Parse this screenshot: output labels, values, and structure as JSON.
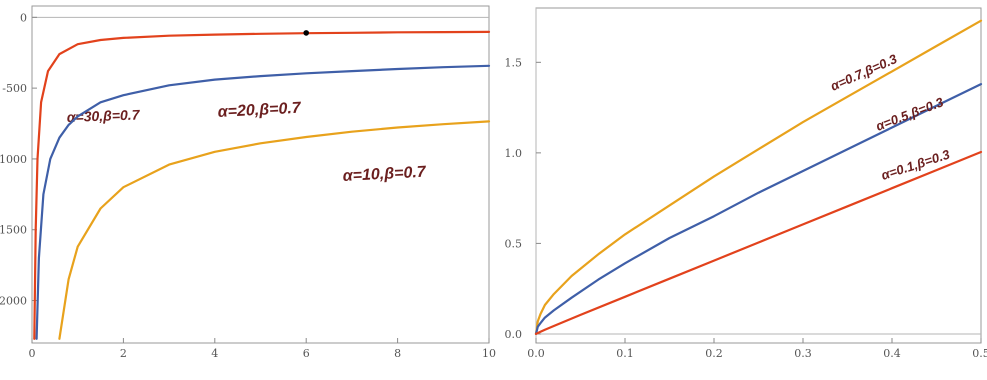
{
  "chart_data": [
    {
      "type": "line",
      "xlim": [
        0,
        10
      ],
      "ylim": [
        -2300,
        80
      ],
      "x_ticks": [
        0,
        2,
        4,
        6,
        8,
        10
      ],
      "x_tick_labels": [
        "0",
        "2",
        "4",
        "6",
        "8",
        "10"
      ],
      "y_ticks": [
        0,
        -500,
        -1000,
        -1500,
        -2000
      ],
      "y_tick_labels": [
        "0",
        "-500",
        "-1000",
        "-1500",
        "-2000"
      ],
      "grid": false,
      "marker": {
        "x": 6.0,
        "y": -110,
        "color": "#000000"
      },
      "series": [
        {
          "label": "α=30,β=0.7",
          "color": "#e2421c",
          "x": [
            0.05,
            0.08,
            0.12,
            0.2,
            0.35,
            0.6,
            1,
            1.5,
            2,
            3,
            4,
            5,
            6,
            7,
            8,
            9,
            10
          ],
          "y": [
            -2270,
            -1500,
            -1000,
            -600,
            -380,
            -260,
            -190,
            -160,
            -145,
            -130,
            -122,
            -116,
            -112,
            -109,
            -106,
            -104,
            -103
          ]
        },
        {
          "label": "α=20,β=0.7",
          "color": "#3f5fa8",
          "x": [
            0.1,
            0.15,
            0.25,
            0.4,
            0.6,
            0.8,
            1,
            1.5,
            2,
            3,
            4,
            5,
            6,
            7,
            8,
            9,
            10
          ],
          "y": [
            -2270,
            -1700,
            -1250,
            -1000,
            -850,
            -760,
            -700,
            -600,
            -550,
            -480,
            -440,
            -415,
            -395,
            -380,
            -365,
            -352,
            -342
          ]
        },
        {
          "label": "α=10,β=0.7",
          "color": "#e8a21c",
          "x": [
            0.6,
            0.8,
            1,
            1.5,
            2,
            3,
            4,
            5,
            6,
            7,
            8,
            9,
            10
          ],
          "y": [
            -2270,
            -1850,
            -1620,
            -1350,
            -1200,
            -1040,
            -950,
            -890,
            -845,
            -808,
            -778,
            -755,
            -735
          ]
        }
      ]
    },
    {
      "type": "line",
      "xlim": [
        0,
        0.5
      ],
      "ylim": [
        -0.05,
        1.8
      ],
      "x_ticks": [
        0,
        0.1,
        0.2,
        0.3,
        0.4,
        0.5
      ],
      "x_tick_labels": [
        "0.0",
        "0.1",
        "0.2",
        "0.3",
        "0.4",
        "0.5"
      ],
      "y_ticks": [
        0,
        0.5,
        1.0,
        1.5
      ],
      "y_tick_labels": [
        "0.0",
        "0.5",
        "1.0",
        "1.5"
      ],
      "grid": false,
      "series": [
        {
          "label": "α=0.7,β=0.3",
          "color": "#e8a21c",
          "x": [
            0,
            0.002,
            0.005,
            0.01,
            0.02,
            0.04,
            0.07,
            0.1,
            0.15,
            0.2,
            0.25,
            0.3,
            0.35,
            0.4,
            0.45,
            0.5
          ],
          "y": [
            0,
            0.07,
            0.11,
            0.16,
            0.22,
            0.32,
            0.44,
            0.55,
            0.71,
            0.87,
            1.02,
            1.17,
            1.31,
            1.45,
            1.59,
            1.73
          ]
        },
        {
          "label": "α=0.5,β=0.3",
          "color": "#3f5fa8",
          "x": [
            0,
            0.002,
            0.005,
            0.01,
            0.02,
            0.04,
            0.07,
            0.1,
            0.15,
            0.2,
            0.25,
            0.3,
            0.35,
            0.4,
            0.45,
            0.5
          ],
          "y": [
            0,
            0.04,
            0.06,
            0.09,
            0.13,
            0.2,
            0.3,
            0.39,
            0.53,
            0.65,
            0.78,
            0.9,
            1.02,
            1.14,
            1.26,
            1.38
          ]
        },
        {
          "label": "α=0.1,β=0.3",
          "color": "#e2421c",
          "x": [
            0,
            0.005,
            0.01,
            0.02,
            0.05,
            0.1,
            0.15,
            0.2,
            0.25,
            0.3,
            0.35,
            0.4,
            0.45,
            0.5
          ],
          "y": [
            0,
            0.012,
            0.023,
            0.044,
            0.105,
            0.205,
            0.305,
            0.405,
            0.505,
            0.605,
            0.705,
            0.805,
            0.905,
            1.005
          ]
        }
      ]
    }
  ]
}
